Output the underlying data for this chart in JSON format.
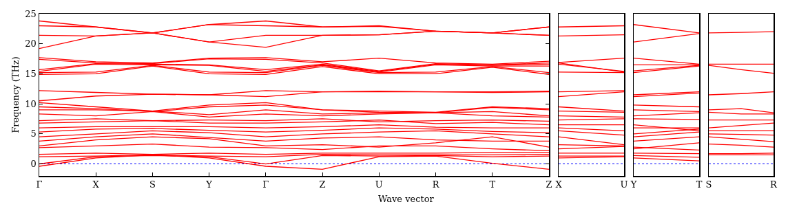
{
  "chart_data": [
    {
      "type": "line",
      "ylabel": "Frequency (THz)",
      "xlabel": "Wave vector",
      "ylim": [
        -2,
        25
      ],
      "yticks": [
        0,
        5,
        10,
        15,
        20,
        25
      ],
      "categories": [
        "Γ",
        "X",
        "S",
        "Y",
        "Γ",
        "Z",
        "U",
        "R",
        "T",
        "Z"
      ],
      "ref_lines": [
        {
          "axis": "y",
          "value": 0,
          "color": "#0000ff",
          "line_style": "dotted"
        }
      ],
      "series": [
        {
          "color": "#ff0000",
          "values": [
            23.8,
            22.8,
            21.8,
            23.2,
            23.8,
            22.8,
            23.0,
            22.1,
            21.8,
            22.8
          ]
        },
        {
          "color": "#ff0000",
          "values": [
            23.0,
            22.8,
            21.8,
            23.2,
            23.0,
            22.8,
            22.9,
            22.1,
            21.8,
            21.4
          ]
        },
        {
          "color": "#ff0000",
          "values": [
            21.4,
            21.3,
            21.8,
            20.3,
            21.4,
            21.4,
            21.5,
            22.1,
            21.8,
            22.8
          ]
        },
        {
          "color": "#ff0000",
          "values": [
            19.2,
            21.3,
            21.8,
            20.3,
            19.4,
            21.4,
            21.5,
            22.1,
            21.8,
            21.4
          ]
        },
        {
          "color": "#ff0000",
          "values": [
            17.7,
            17.0,
            16.8,
            17.6,
            17.7,
            17.0,
            17.6,
            16.8,
            16.6,
            17.1
          ]
        },
        {
          "color": "#ff0000",
          "values": [
            17.4,
            16.8,
            16.7,
            17.5,
            17.4,
            16.8,
            15.5,
            16.7,
            16.5,
            16.8
          ]
        },
        {
          "color": "#ff0000",
          "values": [
            15.7,
            16.7,
            16.6,
            16.5,
            15.7,
            16.6,
            15.4,
            16.6,
            16.4,
            16.6
          ]
        },
        {
          "color": "#ff0000",
          "values": [
            15.4,
            16.6,
            16.5,
            16.4,
            15.4,
            16.5,
            15.3,
            16.5,
            16.3,
            16.3
          ]
        },
        {
          "color": "#ff0000",
          "values": [
            15.2,
            15.3,
            16.4,
            15.3,
            15.2,
            16.4,
            15.2,
            15.3,
            16.2,
            15.2
          ]
        },
        {
          "color": "#ff0000",
          "values": [
            14.9,
            15.0,
            16.3,
            15.0,
            14.9,
            16.2,
            15.0,
            15.0,
            16.1,
            14.9
          ]
        },
        {
          "color": "#ff0000",
          "values": [
            12.2,
            11.9,
            11.6,
            11.5,
            12.2,
            12.0,
            12.1,
            12.0,
            12.0,
            12.1
          ]
        },
        {
          "color": "#ff0000",
          "values": [
            10.5,
            11.3,
            11.6,
            11.5,
            11.2,
            12.0,
            12.0,
            12.0,
            11.9,
            12.0
          ]
        },
        {
          "color": "#ff0000",
          "values": [
            10.2,
            9.5,
            8.8,
            9.8,
            10.2,
            9.0,
            8.8,
            8.6,
            9.5,
            9.2
          ]
        },
        {
          "color": "#ff0000",
          "values": [
            9.5,
            9.2,
            8.7,
            9.5,
            9.8,
            9.0,
            8.6,
            8.5,
            9.4,
            9.0
          ]
        },
        {
          "color": "#ff0000",
          "values": [
            9.0,
            9.0,
            8.8,
            8.2,
            9.0,
            8.3,
            8.5,
            8.5,
            8.7,
            8.0
          ]
        },
        {
          "color": "#ff0000",
          "values": [
            8.3,
            8.0,
            8.7,
            7.8,
            8.3,
            8.0,
            8.3,
            8.5,
            8.0,
            7.8
          ]
        },
        {
          "color": "#ff0000",
          "values": [
            7.2,
            7.5,
            7.2,
            7.3,
            7.2,
            7.5,
            7.0,
            7.2,
            7.3,
            7.1
          ]
        },
        {
          "color": "#ff0000",
          "values": [
            6.8,
            7.0,
            7.2,
            6.8,
            6.8,
            7.0,
            7.3,
            6.7,
            6.9,
            6.5
          ]
        },
        {
          "color": "#ff0000",
          "values": [
            6.0,
            6.2,
            6.2,
            6.2,
            6.0,
            6.2,
            6.5,
            6.1,
            6.0,
            6.0
          ]
        },
        {
          "color": "#ff0000",
          "values": [
            5.3,
            5.8,
            5.9,
            5.6,
            5.3,
            5.6,
            6.0,
            5.8,
            5.4,
            5.2
          ]
        },
        {
          "color": "#ff0000",
          "values": [
            4.5,
            5.0,
            5.5,
            5.2,
            4.5,
            5.0,
            5.3,
            5.5,
            5.0,
            4.5
          ]
        },
        {
          "color": "#ff0000",
          "values": [
            3.8,
            4.5,
            5.0,
            4.4,
            3.8,
            4.3,
            4.5,
            4.0,
            3.8,
            3.8
          ]
        },
        {
          "color": "#ff0000",
          "values": [
            3.0,
            4.0,
            4.5,
            4.2,
            3.0,
            3.2,
            2.8,
            3.5,
            4.5,
            2.8
          ]
        },
        {
          "color": "#ff0000",
          "values": [
            2.7,
            3.0,
            3.3,
            2.8,
            2.7,
            2.4,
            3.0,
            3.0,
            2.5,
            2.2
          ]
        },
        {
          "color": "#ff0000",
          "values": [
            1.6,
            1.8,
            1.6,
            1.8,
            1.6,
            1.8,
            1.8,
            1.8,
            1.9,
            1.9
          ]
        },
        {
          "color": "#ff0000",
          "values": [
            1.2,
            1.3,
            1.5,
            1.3,
            1.2,
            1.6,
            1.5,
            1.5,
            1.5,
            1.6
          ]
        },
        {
          "color": "#ff0000",
          "values": [
            0.0,
            1.2,
            1.4,
            1.2,
            0.0,
            1.4,
            1.3,
            1.4,
            1.2,
            1.3
          ]
        },
        {
          "color": "#ff0000",
          "values": [
            -0.4,
            1.0,
            1.5,
            1.0,
            -0.4,
            -0.9,
            1.2,
            1.3,
            0.1,
            -0.9
          ]
        }
      ]
    },
    {
      "type": "line",
      "ylim": [
        -2,
        25
      ],
      "yticks": [
        0,
        5,
        10,
        15,
        20,
        25
      ],
      "tick_labels": "x",
      "categories": [
        "X",
        "U"
      ],
      "ref_lines": [
        {
          "axis": "y",
          "value": 0,
          "color": "#0000ff",
          "line_style": "dotted"
        }
      ],
      "series": [
        {
          "color": "#ff0000",
          "values": [
            22.8,
            23.0
          ]
        },
        {
          "color": "#ff0000",
          "values": [
            21.3,
            21.5
          ]
        },
        {
          "color": "#ff0000",
          "values": [
            16.9,
            17.6
          ]
        },
        {
          "color": "#ff0000",
          "values": [
            16.8,
            15.3
          ]
        },
        {
          "color": "#ff0000",
          "values": [
            16.6,
            15.4
          ]
        },
        {
          "color": "#ff0000",
          "values": [
            15.3,
            15.2
          ]
        },
        {
          "color": "#ff0000",
          "values": [
            12.0,
            12.2
          ]
        },
        {
          "color": "#ff0000",
          "values": [
            11.2,
            12.0
          ]
        },
        {
          "color": "#ff0000",
          "values": [
            9.5,
            8.8
          ]
        },
        {
          "color": "#ff0000",
          "values": [
            8.8,
            8.6
          ]
        },
        {
          "color": "#ff0000",
          "values": [
            8.0,
            7.8
          ]
        },
        {
          "color": "#ff0000",
          "values": [
            7.3,
            7.5
          ]
        },
        {
          "color": "#ff0000",
          "values": [
            6.5,
            6.5
          ]
        },
        {
          "color": "#ff0000",
          "values": [
            6.0,
            5.5
          ]
        },
        {
          "color": "#ff0000",
          "values": [
            5.5,
            4.8
          ]
        },
        {
          "color": "#ff0000",
          "values": [
            4.5,
            3.2
          ]
        },
        {
          "color": "#ff0000",
          "values": [
            3.2,
            3.0
          ]
        },
        {
          "color": "#ff0000",
          "values": [
            2.5,
            2.9
          ]
        },
        {
          "color": "#ff0000",
          "values": [
            1.8,
            1.8
          ]
        },
        {
          "color": "#ff0000",
          "values": [
            1.3,
            1.3
          ]
        },
        {
          "color": "#ff0000",
          "values": [
            1.0,
            1.2
          ]
        }
      ]
    },
    {
      "type": "line",
      "ylim": [
        -2,
        25
      ],
      "yticks": [
        0,
        5,
        10,
        15,
        20,
        25
      ],
      "tick_labels": "x",
      "categories": [
        "Y",
        "T"
      ],
      "ref_lines": [
        {
          "axis": "y",
          "value": 0,
          "color": "#0000ff",
          "line_style": "dotted"
        }
      ],
      "series": [
        {
          "color": "#ff0000",
          "values": [
            23.2,
            21.8
          ]
        },
        {
          "color": "#ff0000",
          "values": [
            20.3,
            21.7
          ]
        },
        {
          "color": "#ff0000",
          "values": [
            17.6,
            16.6
          ]
        },
        {
          "color": "#ff0000",
          "values": [
            16.5,
            16.5
          ]
        },
        {
          "color": "#ff0000",
          "values": [
            15.5,
            16.4
          ]
        },
        {
          "color": "#ff0000",
          "values": [
            15.2,
            16.3
          ]
        },
        {
          "color": "#ff0000",
          "values": [
            11.5,
            12.0
          ]
        },
        {
          "color": "#ff0000",
          "values": [
            11.2,
            11.8
          ]
        },
        {
          "color": "#ff0000",
          "values": [
            9.8,
            9.5
          ]
        },
        {
          "color": "#ff0000",
          "values": [
            9.0,
            8.7
          ]
        },
        {
          "color": "#ff0000",
          "values": [
            8.0,
            8.5
          ]
        },
        {
          "color": "#ff0000",
          "values": [
            7.5,
            7.4
          ]
        },
        {
          "color": "#ff0000",
          "values": [
            6.5,
            5.5
          ]
        },
        {
          "color": "#ff0000",
          "values": [
            6.0,
            6.0
          ]
        },
        {
          "color": "#ff0000",
          "values": [
            5.0,
            5.8
          ]
        },
        {
          "color": "#ff0000",
          "values": [
            4.5,
            5.3
          ]
        },
        {
          "color": "#ff0000",
          "values": [
            3.8,
            4.5
          ]
        },
        {
          "color": "#ff0000",
          "values": [
            2.5,
            3.5
          ]
        },
        {
          "color": "#ff0000",
          "values": [
            2.8,
            2.3
          ]
        },
        {
          "color": "#ff0000",
          "values": [
            1.8,
            1.7
          ]
        },
        {
          "color": "#ff0000",
          "values": [
            1.4,
            1.1
          ]
        },
        {
          "color": "#ff0000",
          "values": [
            1.0,
            0.5
          ]
        }
      ]
    },
    {
      "type": "line",
      "ylim": [
        -2,
        25
      ],
      "yticks": [
        0,
        5,
        10,
        15,
        20,
        25
      ],
      "tick_labels": "x",
      "categories": [
        "S",
        null,
        "R"
      ],
      "ref_lines": [
        {
          "axis": "y",
          "value": 0,
          "color": "#0000ff",
          "line_style": "dotted"
        }
      ],
      "series": [
        {
          "color": "#ff0000",
          "values": [
            21.8,
            21.9,
            22.0
          ]
        },
        {
          "color": "#ff0000",
          "values": [
            16.6,
            16.6,
            16.6
          ]
        },
        {
          "color": "#ff0000",
          "values": [
            16.4,
            15.7,
            15.1
          ]
        },
        {
          "color": "#ff0000",
          "values": [
            11.5,
            11.7,
            12.0
          ]
        },
        {
          "color": "#ff0000",
          "values": [
            9.0,
            9.2,
            8.5
          ]
        },
        {
          "color": "#ff0000",
          "values": [
            8.6,
            8.3,
            8.3
          ]
        },
        {
          "color": "#ff0000",
          "values": [
            7.3,
            7.3,
            7.3
          ]
        },
        {
          "color": "#ff0000",
          "values": [
            6.0,
            6.4,
            6.8
          ]
        },
        {
          "color": "#ff0000",
          "values": [
            5.5,
            5.5,
            5.5
          ]
        },
        {
          "color": "#ff0000",
          "values": [
            5.0,
            4.9,
            4.8
          ]
        },
        {
          "color": "#ff0000",
          "values": [
            4.5,
            4.1,
            3.7
          ]
        },
        {
          "color": "#ff0000",
          "values": [
            3.3,
            3.1,
            2.8
          ]
        },
        {
          "color": "#ff0000",
          "values": [
            1.7,
            1.7,
            1.8
          ]
        },
        {
          "color": "#ff0000",
          "values": [
            1.5,
            1.5,
            1.5
          ]
        }
      ]
    }
  ]
}
